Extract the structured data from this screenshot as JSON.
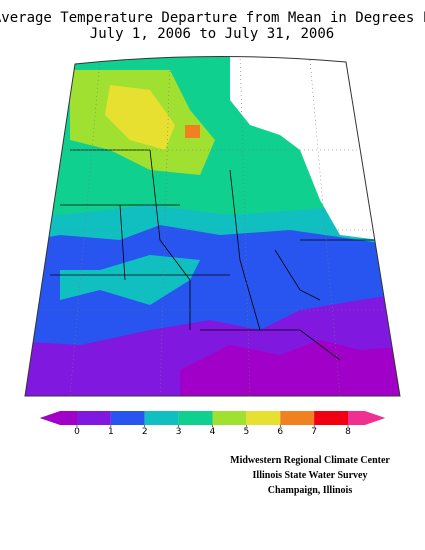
{
  "title": [
    "Average Temperature Departure from Mean in Degrees F",
    "July 1, 2006 to July 31, 2006"
  ],
  "colorbar": {
    "ticks": [
      0,
      1,
      2,
      3,
      4,
      5,
      6,
      7,
      8
    ],
    "colors": [
      "#a000c8",
      "#8018e0",
      "#2855f0",
      "#10c0c0",
      "#10d090",
      "#a0e030",
      "#e8e030",
      "#f08020",
      "#f00010",
      "#f03090"
    ]
  },
  "credits": [
    "Midwestern Regional Climate Center",
    "Illinois State Water Survey",
    "Champaign, Illinois"
  ]
}
